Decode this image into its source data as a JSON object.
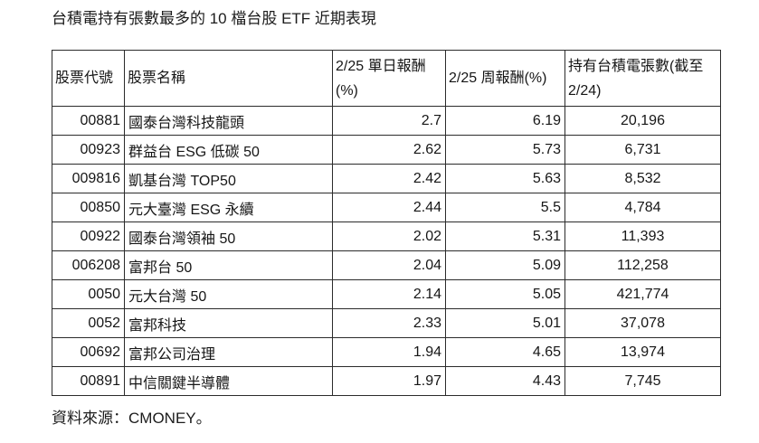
{
  "title": "台積電持有張數最多的 10 檔台股 ETF 近期表現",
  "source_note": "資料來源：CMONEY。",
  "table": {
    "columns": [
      "股票代號",
      "股票名稱",
      "2/25 單日報酬(%)",
      "2/25 周報酬(%)",
      "持有台積電張數(截至 2/24)"
    ],
    "rows": [
      {
        "code": "00881",
        "name": "國泰台灣科技龍頭",
        "day_return": "2.7",
        "week_return": "6.19",
        "tsmc_shares": "20,196"
      },
      {
        "code": "00923",
        "name": "群益台 ESG 低碳 50",
        "day_return": "2.62",
        "week_return": "5.73",
        "tsmc_shares": "6,731"
      },
      {
        "code": "009816",
        "name": "凱基台灣 TOP50",
        "day_return": "2.42",
        "week_return": "5.63",
        "tsmc_shares": "8,532"
      },
      {
        "code": "00850",
        "name": "元大臺灣 ESG 永續",
        "day_return": "2.44",
        "week_return": "5.5",
        "tsmc_shares": "4,784"
      },
      {
        "code": "00922",
        "name": "國泰台灣領袖 50",
        "day_return": "2.02",
        "week_return": "5.31",
        "tsmc_shares": "11,393"
      },
      {
        "code": "006208",
        "name": "富邦台 50",
        "day_return": "2.04",
        "week_return": "5.09",
        "tsmc_shares": "112,258"
      },
      {
        "code": "0050",
        "name": "元大台灣 50",
        "day_return": "2.14",
        "week_return": "5.05",
        "tsmc_shares": "421,774"
      },
      {
        "code": "0052",
        "name": "富邦科技",
        "day_return": "2.33",
        "week_return": "5.01",
        "tsmc_shares": "37,078"
      },
      {
        "code": "00692",
        "name": "富邦公司治理",
        "day_return": "1.94",
        "week_return": "4.65",
        "tsmc_shares": "13,974"
      },
      {
        "code": "00891",
        "name": "中信關鍵半導體",
        "day_return": "1.97",
        "week_return": "4.43",
        "tsmc_shares": "7,745"
      }
    ]
  },
  "chart_data": {
    "type": "table",
    "title": "台積電持有張數最多的 10 檔台股 ETF 近期表現",
    "columns": [
      "股票代號",
      "股票名稱",
      "2/25 單日報酬(%)",
      "2/25 周報酬(%)",
      "持有台積電張數(截至 2/24)"
    ],
    "rows": [
      [
        "00881",
        "國泰台灣科技龍頭",
        2.7,
        6.19,
        20196
      ],
      [
        "00923",
        "群益台 ESG 低碳 50",
        2.62,
        5.73,
        6731
      ],
      [
        "009816",
        "凱基台灣 TOP50",
        2.42,
        5.63,
        8532
      ],
      [
        "00850",
        "元大臺灣 ESG 永續",
        2.44,
        5.5,
        4784
      ],
      [
        "00922",
        "國泰台灣領袖 50",
        2.02,
        5.31,
        11393
      ],
      [
        "006208",
        "富邦台 50",
        2.04,
        5.09,
        112258
      ],
      [
        "0050",
        "元大台灣 50",
        2.14,
        5.05,
        421774
      ],
      [
        "0052",
        "富邦科技",
        2.33,
        5.01,
        37078
      ],
      [
        "00692",
        "富邦公司治理",
        1.94,
        4.65,
        13974
      ],
      [
        "00891",
        "中信關鍵半導體",
        1.97,
        4.43,
        7745
      ]
    ],
    "source": "資料來源：CMONEY。"
  }
}
